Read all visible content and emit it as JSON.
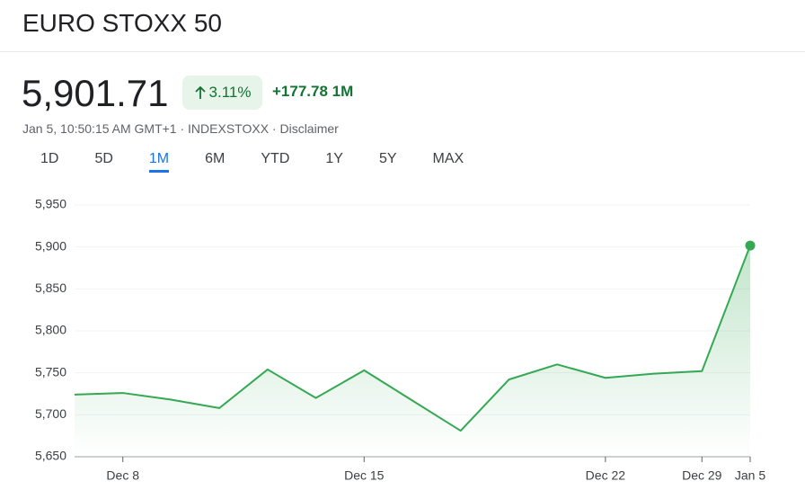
{
  "header": {
    "title": "EURO STOXX 50",
    "price": "5,901.71",
    "change_pct": "3.11%",
    "change": "+177.78 1M",
    "subtitle": "Jan 5, 10:50:15 AM GMT+1 · INDEXSTOXX · Disclaimer"
  },
  "tabs": {
    "items": [
      "1D",
      "5D",
      "1M",
      "6M",
      "YTD",
      "1Y",
      "5Y",
      "MAX"
    ],
    "selected": "1M"
  },
  "chart_data": {
    "type": "area",
    "categories": [
      null,
      "Dec 8",
      null,
      null,
      null,
      null,
      "Dec 15",
      null,
      null,
      null,
      null,
      "Dec 22",
      null,
      "Dec 29",
      "Jan 5"
    ],
    "values": [
      5724,
      5726,
      5718,
      5708,
      5754,
      5720,
      5753,
      5717,
      5681,
      5742,
      5760,
      5744,
      5749,
      5752,
      5901.71
    ],
    "color": "#34a853",
    "ylim": [
      5650,
      5950
    ],
    "yticks": [
      {
        "value": 5650,
        "label": "5,650"
      },
      {
        "value": 5700,
        "label": "5,700"
      },
      {
        "value": 5750,
        "label": "5,750"
      },
      {
        "value": 5800,
        "label": "5,800"
      },
      {
        "value": 5850,
        "label": "5,850"
      },
      {
        "value": 5900,
        "label": "5,900"
      },
      {
        "value": 5950,
        "label": "5,950"
      }
    ],
    "grid": true
  }
}
